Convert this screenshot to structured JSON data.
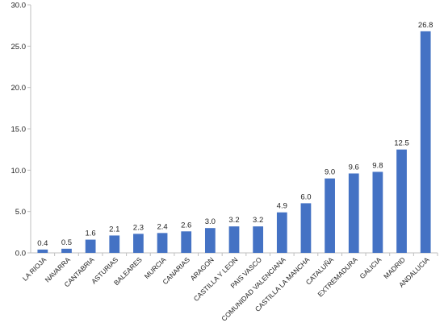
{
  "chart_data": {
    "type": "bar",
    "title": "",
    "xlabel": "",
    "ylabel": "",
    "categories": [
      "LA RIOJA",
      "NAVARRA",
      "CANTABRIA",
      "ASTURIAS",
      "BALEARES",
      "MURCIA",
      "CANARIAS",
      "ARAGON",
      "CASTILLA Y LEON",
      "PAIS VASCO",
      "COMUNIDAD VALENCIANA",
      "CASTILLA LA MANCHA",
      "CATALUÑA",
      "EXTREMADURA",
      "GALICIA",
      "MADRID",
      "ANDALUCIA"
    ],
    "values": [
      0.4,
      0.5,
      1.6,
      2.1,
      2.3,
      2.4,
      2.6,
      3.0,
      3.2,
      3.2,
      4.9,
      6.0,
      9.0,
      9.6,
      9.8,
      12.5,
      26.8
    ],
    "value_labels": [
      "0.4",
      "0.5",
      "1.6",
      "2.1",
      "2.3",
      "2.4",
      "2.6",
      "3.0",
      "3.2",
      "3.2",
      "4.9",
      "6.0",
      "9.0",
      "9.6",
      "9.8",
      "12.5",
      "26.8"
    ],
    "ylim": [
      0,
      30
    ],
    "yticks": [
      "0.0",
      "5.0",
      "10.0",
      "15.0",
      "20.0",
      "25.0",
      "30.0"
    ],
    "ytick_values": [
      0,
      5,
      10,
      15,
      20,
      25,
      30
    ],
    "grid": false,
    "legend": "none",
    "bar_color": "#4472C4",
    "axis_color": "#BFBFBF"
  }
}
